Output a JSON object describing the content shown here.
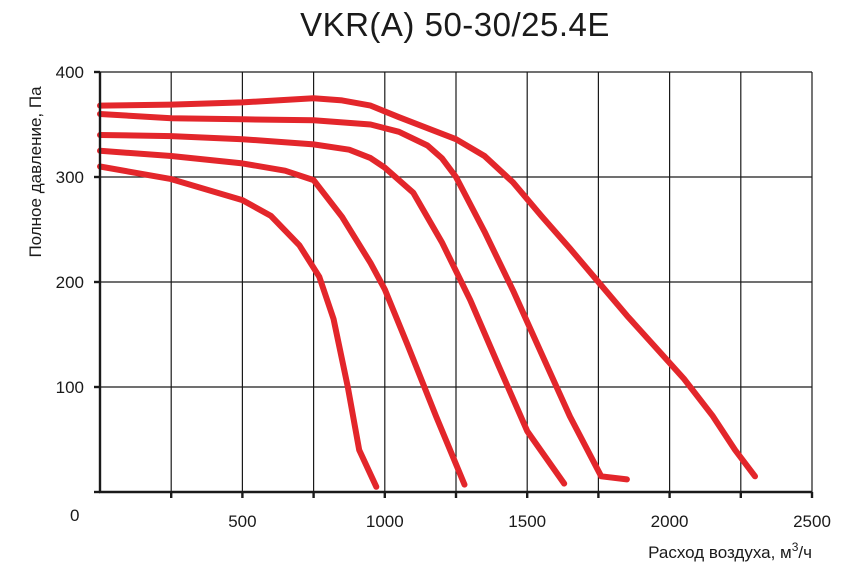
{
  "chart_data": {
    "type": "line",
    "title": "VKR(A) 50-30/25.4E",
    "xlabel": "Расход воздуха, м",
    "xlabel_sup": "3",
    "xlabel_suffix": "/ч",
    "ylabel": "Полное давление, Па",
    "xlim": [
      0,
      2500
    ],
    "ylim": [
      0,
      400
    ],
    "x_ticks": [
      500,
      1000,
      1500,
      2000,
      2500
    ],
    "x_tick_labels": [
      "500",
      "1000",
      "1500",
      "2000",
      "2500"
    ],
    "y_ticks": [
      100,
      200,
      300,
      400
    ],
    "y_tick_labels": [
      "100",
      "200",
      "300",
      "400"
    ],
    "origin_label": "0",
    "x_gridlines": [
      250,
      500,
      750,
      1000,
      1250,
      1500,
      1750,
      2000,
      2250,
      2500
    ],
    "y_gridlines": [
      100,
      200,
      300,
      400
    ],
    "grid": true,
    "line_color": "#e3262b",
    "series": [
      {
        "values": [
          [
            0,
            310
          ],
          [
            250,
            298
          ],
          [
            500,
            278
          ],
          [
            600,
            263
          ],
          [
            700,
            235
          ],
          [
            770,
            205
          ],
          [
            820,
            165
          ],
          [
            870,
            100
          ],
          [
            910,
            40
          ],
          [
            970,
            5
          ]
        ]
      },
      {
        "values": [
          [
            0,
            325
          ],
          [
            250,
            320
          ],
          [
            500,
            313
          ],
          [
            650,
            306
          ],
          [
            750,
            297
          ],
          [
            850,
            262
          ],
          [
            950,
            218
          ],
          [
            1000,
            193
          ],
          [
            1080,
            140
          ],
          [
            1180,
            72
          ],
          [
            1280,
            7
          ]
        ]
      },
      {
        "values": [
          [
            0,
            340
          ],
          [
            250,
            339
          ],
          [
            500,
            336
          ],
          [
            750,
            331
          ],
          [
            875,
            326
          ],
          [
            950,
            318
          ],
          [
            1000,
            309
          ],
          [
            1100,
            285
          ],
          [
            1200,
            238
          ],
          [
            1300,
            183
          ],
          [
            1400,
            120
          ],
          [
            1500,
            58
          ],
          [
            1630,
            8
          ]
        ]
      },
      {
        "values": [
          [
            0,
            360
          ],
          [
            250,
            356
          ],
          [
            500,
            355
          ],
          [
            750,
            354
          ],
          [
            950,
            350
          ],
          [
            1050,
            343
          ],
          [
            1150,
            330
          ],
          [
            1200,
            318
          ],
          [
            1250,
            300
          ],
          [
            1350,
            248
          ],
          [
            1450,
            192
          ],
          [
            1550,
            132
          ],
          [
            1650,
            72
          ],
          [
            1760,
            15
          ],
          [
            1850,
            12
          ]
        ]
      },
      {
        "values": [
          [
            0,
            368
          ],
          [
            250,
            369
          ],
          [
            500,
            371
          ],
          [
            750,
            375
          ],
          [
            850,
            373
          ],
          [
            950,
            368
          ],
          [
            1050,
            357
          ],
          [
            1250,
            336
          ],
          [
            1350,
            320
          ],
          [
            1450,
            295
          ],
          [
            1550,
            263
          ],
          [
            1650,
            232
          ],
          [
            1750,
            200
          ],
          [
            1850,
            168
          ],
          [
            1950,
            138
          ],
          [
            2050,
            108
          ],
          [
            2150,
            73
          ],
          [
            2230,
            40
          ],
          [
            2300,
            15
          ]
        ]
      }
    ]
  }
}
